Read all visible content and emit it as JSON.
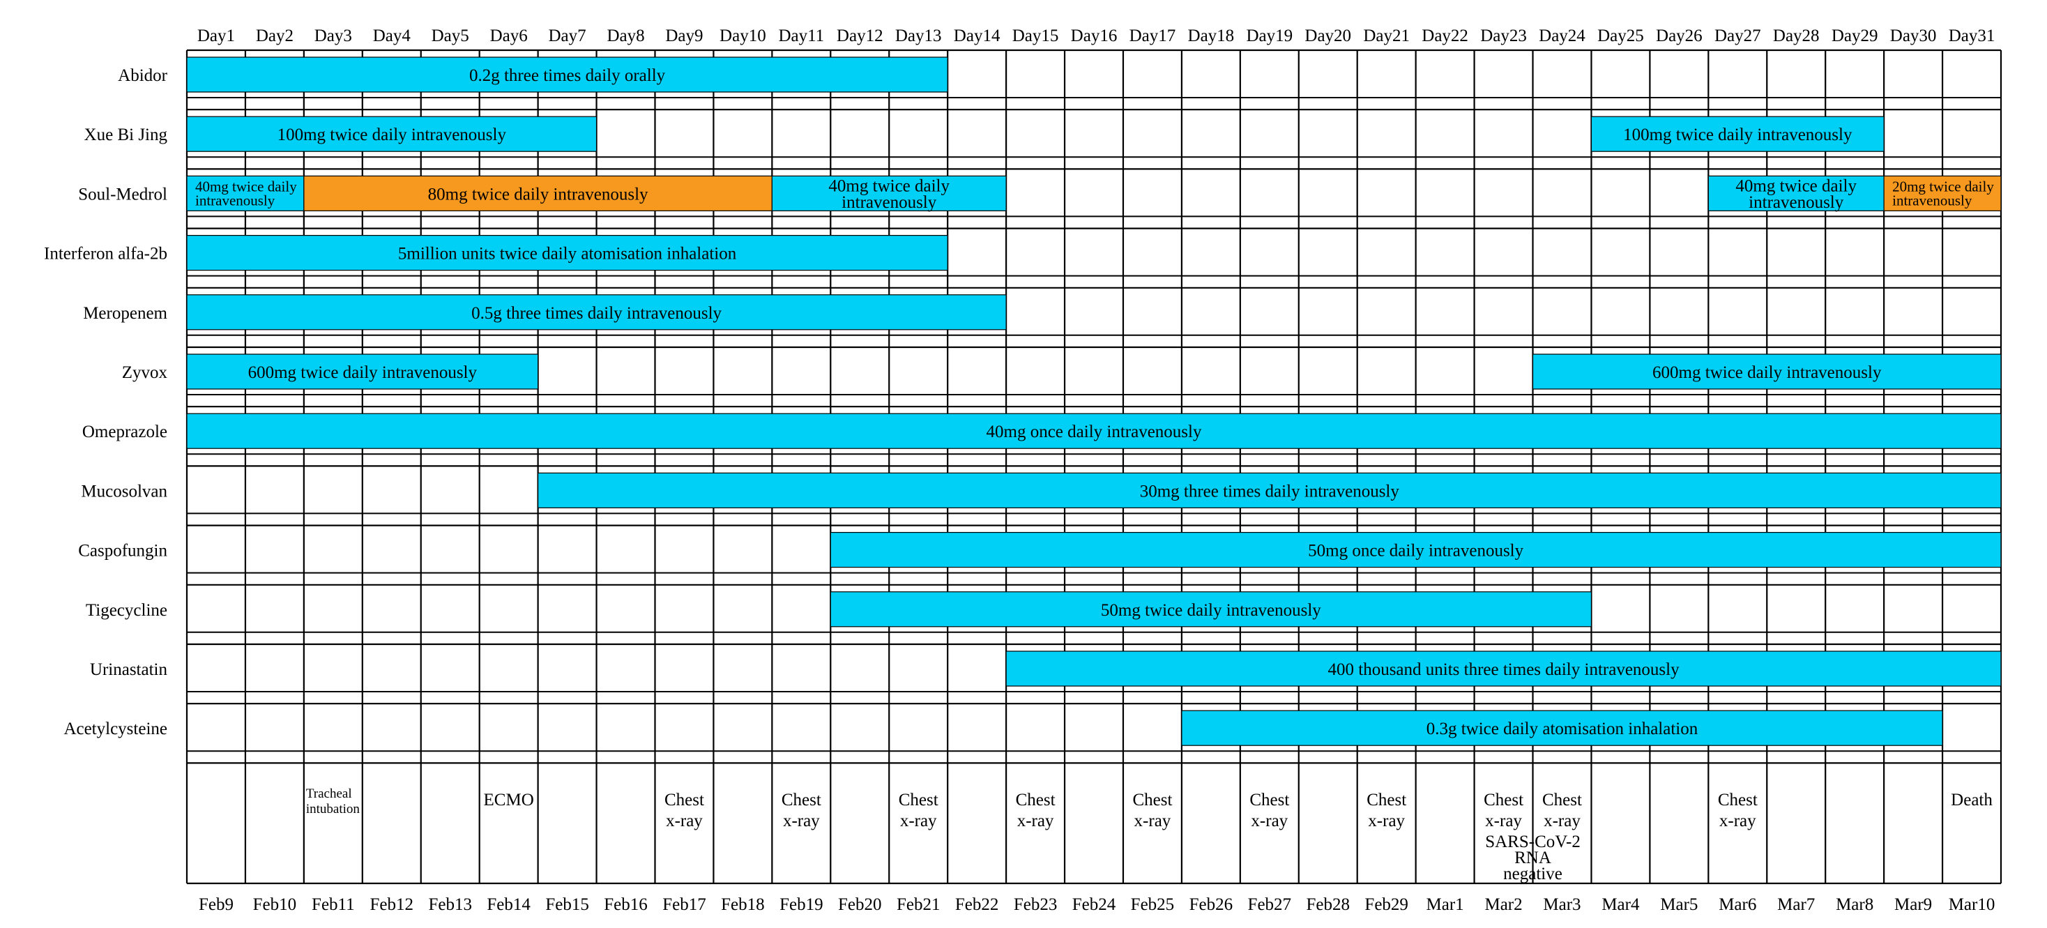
{
  "chart_data": {
    "type": "gantt",
    "title": "",
    "days": [
      "Day1",
      "Day2",
      "Day3",
      "Day4",
      "Day5",
      "Day6",
      "Day7",
      "Day8",
      "Day9",
      "Day10",
      "Day11",
      "Day12",
      "Day13",
      "Day14",
      "Day15",
      "Day16",
      "Day17",
      "Day18",
      "Day19",
      "Day20",
      "Day21",
      "Day22",
      "Day23",
      "Day24",
      "Day25",
      "Day26",
      "Day27",
      "Day28",
      "Day29",
      "Day30",
      "Day31"
    ],
    "dates": [
      "Feb9",
      "Feb10",
      "Feb11",
      "Feb12",
      "Feb13",
      "Feb14",
      "Feb15",
      "Feb16",
      "Feb17",
      "Feb18",
      "Feb19",
      "Feb20",
      "Feb21",
      "Feb22",
      "Feb23",
      "Feb24",
      "Feb25",
      "Feb26",
      "Feb27",
      "Feb28",
      "Feb29",
      "Mar1",
      "Mar2",
      "Mar3",
      "Mar4",
      "Mar5",
      "Mar6",
      "Mar7",
      "Mar8",
      "Mar9",
      "Mar10"
    ],
    "colors": {
      "standard": "#00d0f5",
      "highlight": "#f7991f",
      "grid": "#000000"
    },
    "drugs": [
      {
        "name": "Abidor",
        "bars": [
          {
            "start": 1,
            "end": 13,
            "label": "0.2g three times daily orally",
            "color": "standard"
          }
        ]
      },
      {
        "name": "Xue Bi Jing",
        "bars": [
          {
            "start": 1,
            "end": 7,
            "label": "100mg twice daily intravenously",
            "color": "standard"
          },
          {
            "start": 25,
            "end": 29,
            "label": "100mg twice daily intravenously",
            "color": "standard"
          }
        ]
      },
      {
        "name": "Soul-Medrol",
        "bars": [
          {
            "start": 1,
            "end": 2,
            "label": "40mg twice daily intravenously",
            "color": "standard"
          },
          {
            "start": 3,
            "end": 10,
            "label": "80mg twice daily intravenously",
            "color": "highlight"
          },
          {
            "start": 11,
            "end": 14,
            "label": "40mg twice daily intravenously",
            "color": "standard"
          },
          {
            "start": 27,
            "end": 29,
            "label": "40mg twice daily intravenously",
            "color": "standard"
          },
          {
            "start": 30,
            "end": 31,
            "label": "20mg twice daily intravenously",
            "color": "highlight"
          }
        ]
      },
      {
        "name": "Interferon alfa-2b",
        "bars": [
          {
            "start": 1,
            "end": 13,
            "label": "5million units twice daily atomisation inhalation",
            "color": "standard"
          }
        ]
      },
      {
        "name": "Meropenem",
        "bars": [
          {
            "start": 1,
            "end": 14,
            "label": "0.5g three times daily intravenously",
            "color": "standard"
          }
        ]
      },
      {
        "name": "Zyvox",
        "bars": [
          {
            "start": 1,
            "end": 6,
            "label": "600mg twice daily intravenously",
            "color": "standard"
          },
          {
            "start": 24,
            "end": 31,
            "label": "600mg twice daily intravenously",
            "color": "standard"
          }
        ]
      },
      {
        "name": "Omeprazole",
        "bars": [
          {
            "start": 1,
            "end": 31,
            "label": "40mg once daily intravenously",
            "color": "standard"
          }
        ]
      },
      {
        "name": "Mucosolvan",
        "bars": [
          {
            "start": 7,
            "end": 31,
            "label": "30mg three times daily intravenously",
            "color": "standard"
          }
        ]
      },
      {
        "name": "Caspofungin",
        "bars": [
          {
            "start": 12,
            "end": 31,
            "label": "50mg once daily intravenously",
            "color": "standard"
          }
        ]
      },
      {
        "name": "Tigecycline",
        "bars": [
          {
            "start": 12,
            "end": 24,
            "label": "50mg twice daily intravenously",
            "color": "standard"
          }
        ]
      },
      {
        "name": "Urinastatin",
        "bars": [
          {
            "start": 15,
            "end": 31,
            "label": "400 thousand units three times daily intravenously",
            "color": "standard"
          }
        ]
      },
      {
        "name": "Acetylcysteine",
        "bars": [
          {
            "start": 18,
            "end": 30,
            "label": "0.3g twice daily atomisation inhalation",
            "color": "standard"
          }
        ]
      }
    ],
    "events": [
      {
        "day": 3,
        "text": "Tracheal intubation"
      },
      {
        "day": 6,
        "text": "ECMO"
      },
      {
        "day": 9,
        "text": "Chest x-ray"
      },
      {
        "day": 11,
        "text": "Chest x-ray"
      },
      {
        "day": 13,
        "text": "Chest x-ray"
      },
      {
        "day": 15,
        "text": "Chest x-ray"
      },
      {
        "day": 17,
        "text": "Chest x-ray"
      },
      {
        "day": 19,
        "text": "Chest x-ray"
      },
      {
        "day": 21,
        "text": "Chest x-ray"
      },
      {
        "day": 23,
        "text": "Chest x-ray"
      },
      {
        "day": 24,
        "text": "Chest x-ray"
      },
      {
        "day": 23,
        "text": "SARS-CoV-2 RNA negative",
        "span": 2
      },
      {
        "day": 27,
        "text": "Chest x-ray"
      },
      {
        "day": 31,
        "text": "Death"
      }
    ]
  }
}
